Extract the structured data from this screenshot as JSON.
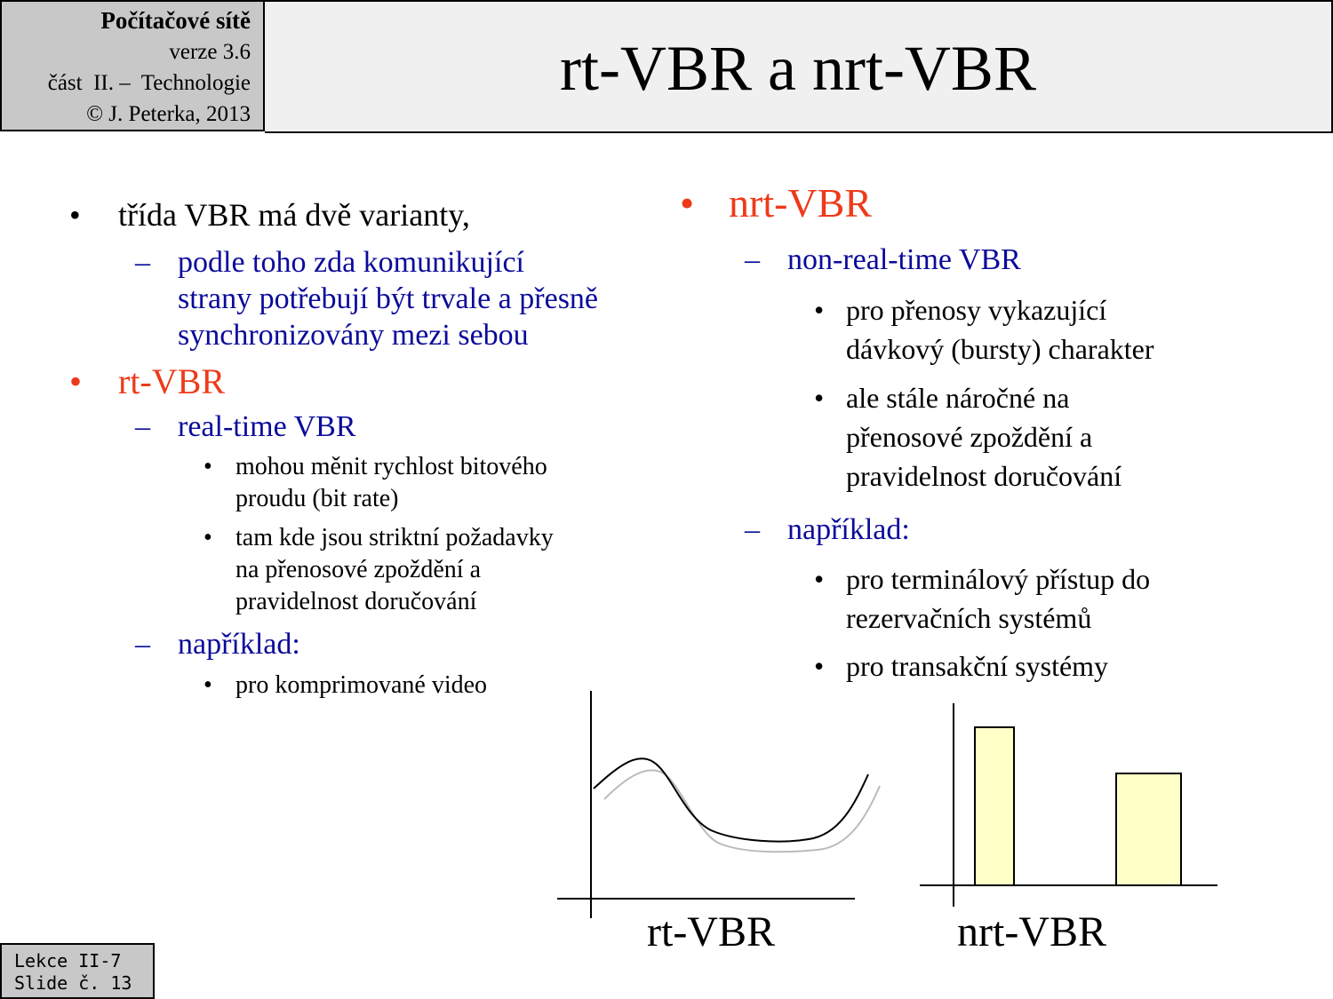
{
  "header": {
    "course": "Počítačové sítě",
    "version": "verze 3.6",
    "part": "část  II. –  Technologie",
    "copyright": "© J. Peterka, 2013",
    "title": "rt-VBR a nrt-VBR"
  },
  "left": {
    "b1": "třída VBR má dvě varianty,",
    "b1_sub": [
      "podle toho zda komunikující",
      "strany potřebují být trvale a přesně",
      "synchronizovány mezi sebou"
    ],
    "rt_heading": "rt-VBR",
    "rt_sub": "real-time VBR",
    "rt_points": [
      [
        "mohou měnit rychlost bitového",
        "proudu (bit rate)"
      ],
      [
        "tam kde jsou striktní požadavky",
        "na přenosové zpoždění a",
        "pravidelnost doručování"
      ]
    ],
    "example_label": "například:",
    "example_points": [
      "pro komprimované video"
    ]
  },
  "right": {
    "heading": "nrt-VBR",
    "sub": "non-real-time VBR",
    "points": [
      [
        "pro přenosy vykazující",
        "dávkový (bursty) charakter"
      ],
      [
        "ale stále náročné na",
        "přenosové zpoždění a",
        "pravidelnost doručování"
      ]
    ],
    "example_label": "například:",
    "example_points": [
      [
        "pro terminálový přístup do",
        "rezervačních systémů"
      ],
      [
        "pro transakční systémy"
      ]
    ]
  },
  "diagrams": {
    "rt_label": "rt-VBR",
    "nrt_label": "nrt-VBR",
    "colors": {
      "curve": "#000000",
      "shadow": "#bbbbbb",
      "bar_fill": "#ffffc8"
    }
  },
  "footer": {
    "lesson": "Lekce II-7",
    "slide": "Slide č. 13"
  },
  "bullets": {
    "dot": "•",
    "dash": "–"
  }
}
